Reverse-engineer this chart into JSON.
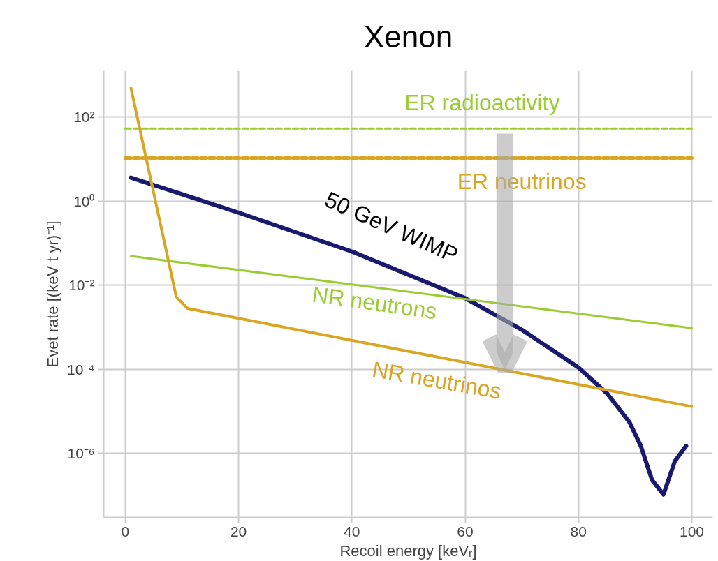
{
  "chart_data": {
    "type": "line",
    "title": "Xenon",
    "xlabel": "Recoil energy [keVᵣ]",
    "ylabel": "Evet rate [(keV t yr)⁻¹]",
    "log": "y",
    "grid": true,
    "xlim": [
      -3.8,
      103.7
    ],
    "ylim": [
      3e-08,
      1250
    ],
    "xticks": [
      0,
      20,
      40,
      60,
      80,
      100
    ],
    "yticks": [
      {
        "value": 100,
        "label": "10²"
      },
      {
        "value": 1,
        "label": "10⁰"
      },
      {
        "value": 0.01,
        "label": "10⁻²"
      },
      {
        "value": 0.0001,
        "label": "10⁻⁴"
      },
      {
        "value": 1e-06,
        "label": "10⁻⁶"
      }
    ],
    "series": [
      {
        "name": "ER radioactivity",
        "color": "#9acd32",
        "line_style": "dashed",
        "x": [
          0,
          100
        ],
        "values": [
          53,
          53
        ]
      },
      {
        "name": "ER neutrinos",
        "color": "#daa520",
        "line_style": "dashed",
        "x": [
          0,
          100
        ],
        "values": [
          10.5,
          10.5
        ]
      },
      {
        "name": "50 GeV WIMP",
        "color": "#191970",
        "line_style": "solid",
        "x": [
          1,
          20,
          40,
          60,
          70,
          80,
          85,
          89,
          91,
          93,
          95,
          97,
          99
        ],
        "values": [
          3.6,
          0.53,
          0.063,
          0.0049,
          0.00087,
          0.00011,
          2.7e-05,
          5.5e-06,
          1.5e-06,
          2.3e-07,
          1.05e-07,
          6.5e-07,
          1.5e-06
        ]
      },
      {
        "name": "NR neutrons",
        "color": "#9acd32",
        "line_style": "solid",
        "x": [
          1,
          100
        ],
        "values": [
          0.049,
          0.00095
        ]
      },
      {
        "name": "NR neutrinos",
        "color": "#daa520",
        "line_style": "solid",
        "x": [
          1,
          9,
          11,
          100
        ],
        "values": [
          490,
          0.0053,
          0.0028,
          1.3e-05
        ]
      }
    ]
  }
}
